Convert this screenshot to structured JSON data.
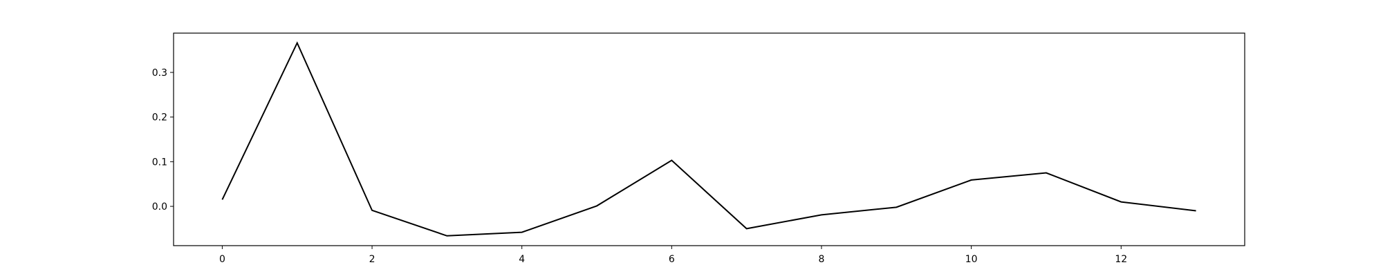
{
  "chart_data": {
    "type": "line",
    "title": "",
    "xlabel": "",
    "ylabel": "",
    "x": [
      0,
      1,
      2,
      3,
      4,
      5,
      6,
      7,
      8,
      9,
      10,
      11,
      12,
      13
    ],
    "series": [
      {
        "color": "#000000",
        "values": [
          0.015,
          0.366,
          -0.009,
          -0.066,
          -0.058,
          0.001,
          0.103,
          -0.05,
          -0.019,
          -0.002,
          0.059,
          0.075,
          0.01,
          -0.01
        ]
      }
    ],
    "xlim": [
      -0.65,
      13.65
    ],
    "ylim": [
      -0.088,
      0.388
    ],
    "xticks": [
      0,
      2,
      4,
      6,
      8,
      10,
      12
    ],
    "xtick_labels": [
      "0",
      "2",
      "4",
      "6",
      "8",
      "10",
      "12"
    ],
    "yticks": [
      0.0,
      0.1,
      0.2,
      0.3
    ],
    "ytick_labels": [
      "0.0",
      "0.1",
      "0.2",
      "0.3"
    ],
    "grid": false,
    "legend": "none"
  }
}
